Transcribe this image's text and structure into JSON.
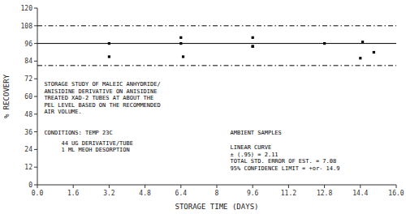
{
  "chart_data": {
    "type": "scatter",
    "xlabel": "STORAGE TIME (DAYS)",
    "ylabel": "% RECOVERY",
    "xlim": [
      0,
      16
    ],
    "ylim": [
      0,
      120
    ],
    "xticks": [
      {
        "value": 0,
        "label": "0.0"
      },
      1.6,
      3.2,
      4.8,
      6.4,
      8.0,
      9.6,
      11.2,
      12.8,
      14.4,
      {
        "value": 16,
        "label": "16.0"
      }
    ],
    "yticks": [
      0,
      12,
      24,
      36,
      48,
      60,
      72,
      84,
      96,
      108,
      120
    ],
    "grid": false,
    "marker": "square",
    "color": "#000000",
    "x": [
      3.2,
      3.2,
      6.4,
      6.4,
      6.5,
      9.6,
      9.6,
      9.6,
      12.8,
      14.4,
      14.5,
      15.0
    ],
    "values": [
      96,
      87,
      100,
      96,
      87,
      100,
      94,
      94,
      96,
      86,
      97,
      90
    ],
    "reference_lines": [
      {
        "y": 96,
        "line_style": "solid",
        "color": "#000000"
      },
      {
        "y": 108,
        "line_style": "dash-dot",
        "color": "#000000"
      },
      {
        "y": 81,
        "line_style": "dash-dot",
        "color": "#000000"
      }
    ],
    "annotations": [
      "STORAGE STUDY OF MALEIC ANHYDRIDE/\nANISIDINE DERIVATIVE ON ANISIDINE\nTREATED XAD-2 TUBES AT ABOUT THE\nPEL LEVEL BASED ON THE RECOMMENDED\nAIR VOLUME.",
      "CONDITIONS: TEMP 23C",
      "     44 UG DERIVATIVE/TUBE\n     1 ML MEOH DESORPTION",
      "AMBIENT SAMPLES",
      "LINEAR CURVE\n± (.95) = 2.11\nTOTAL STD. ERROR OF EST. = 7.08\n95% CONFIDENCE LIMIT = +or- 14.9"
    ]
  }
}
